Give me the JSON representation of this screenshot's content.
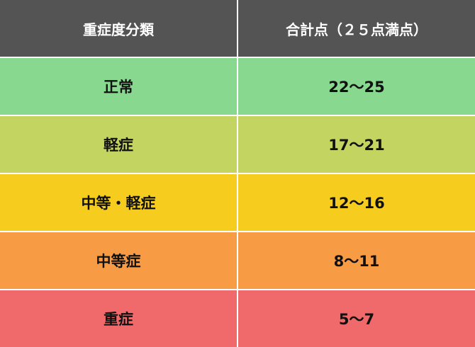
{
  "header": {
    "severity": "重症度分類",
    "score": "合計点（２５点満点）"
  },
  "rows": [
    {
      "severity": "正常",
      "score": "22〜25",
      "color": "#88d98f"
    },
    {
      "severity": "軽症",
      "score": "17〜21",
      "color": "#c3d461"
    },
    {
      "severity": "中等・軽症",
      "score": "12〜16",
      "color": "#f6cc1e"
    },
    {
      "severity": "中等症",
      "score": "8〜11",
      "color": "#f79b45"
    },
    {
      "severity": "重症",
      "score": "5〜7",
      "color": "#f06a6b"
    }
  ],
  "header_color": "#545454"
}
